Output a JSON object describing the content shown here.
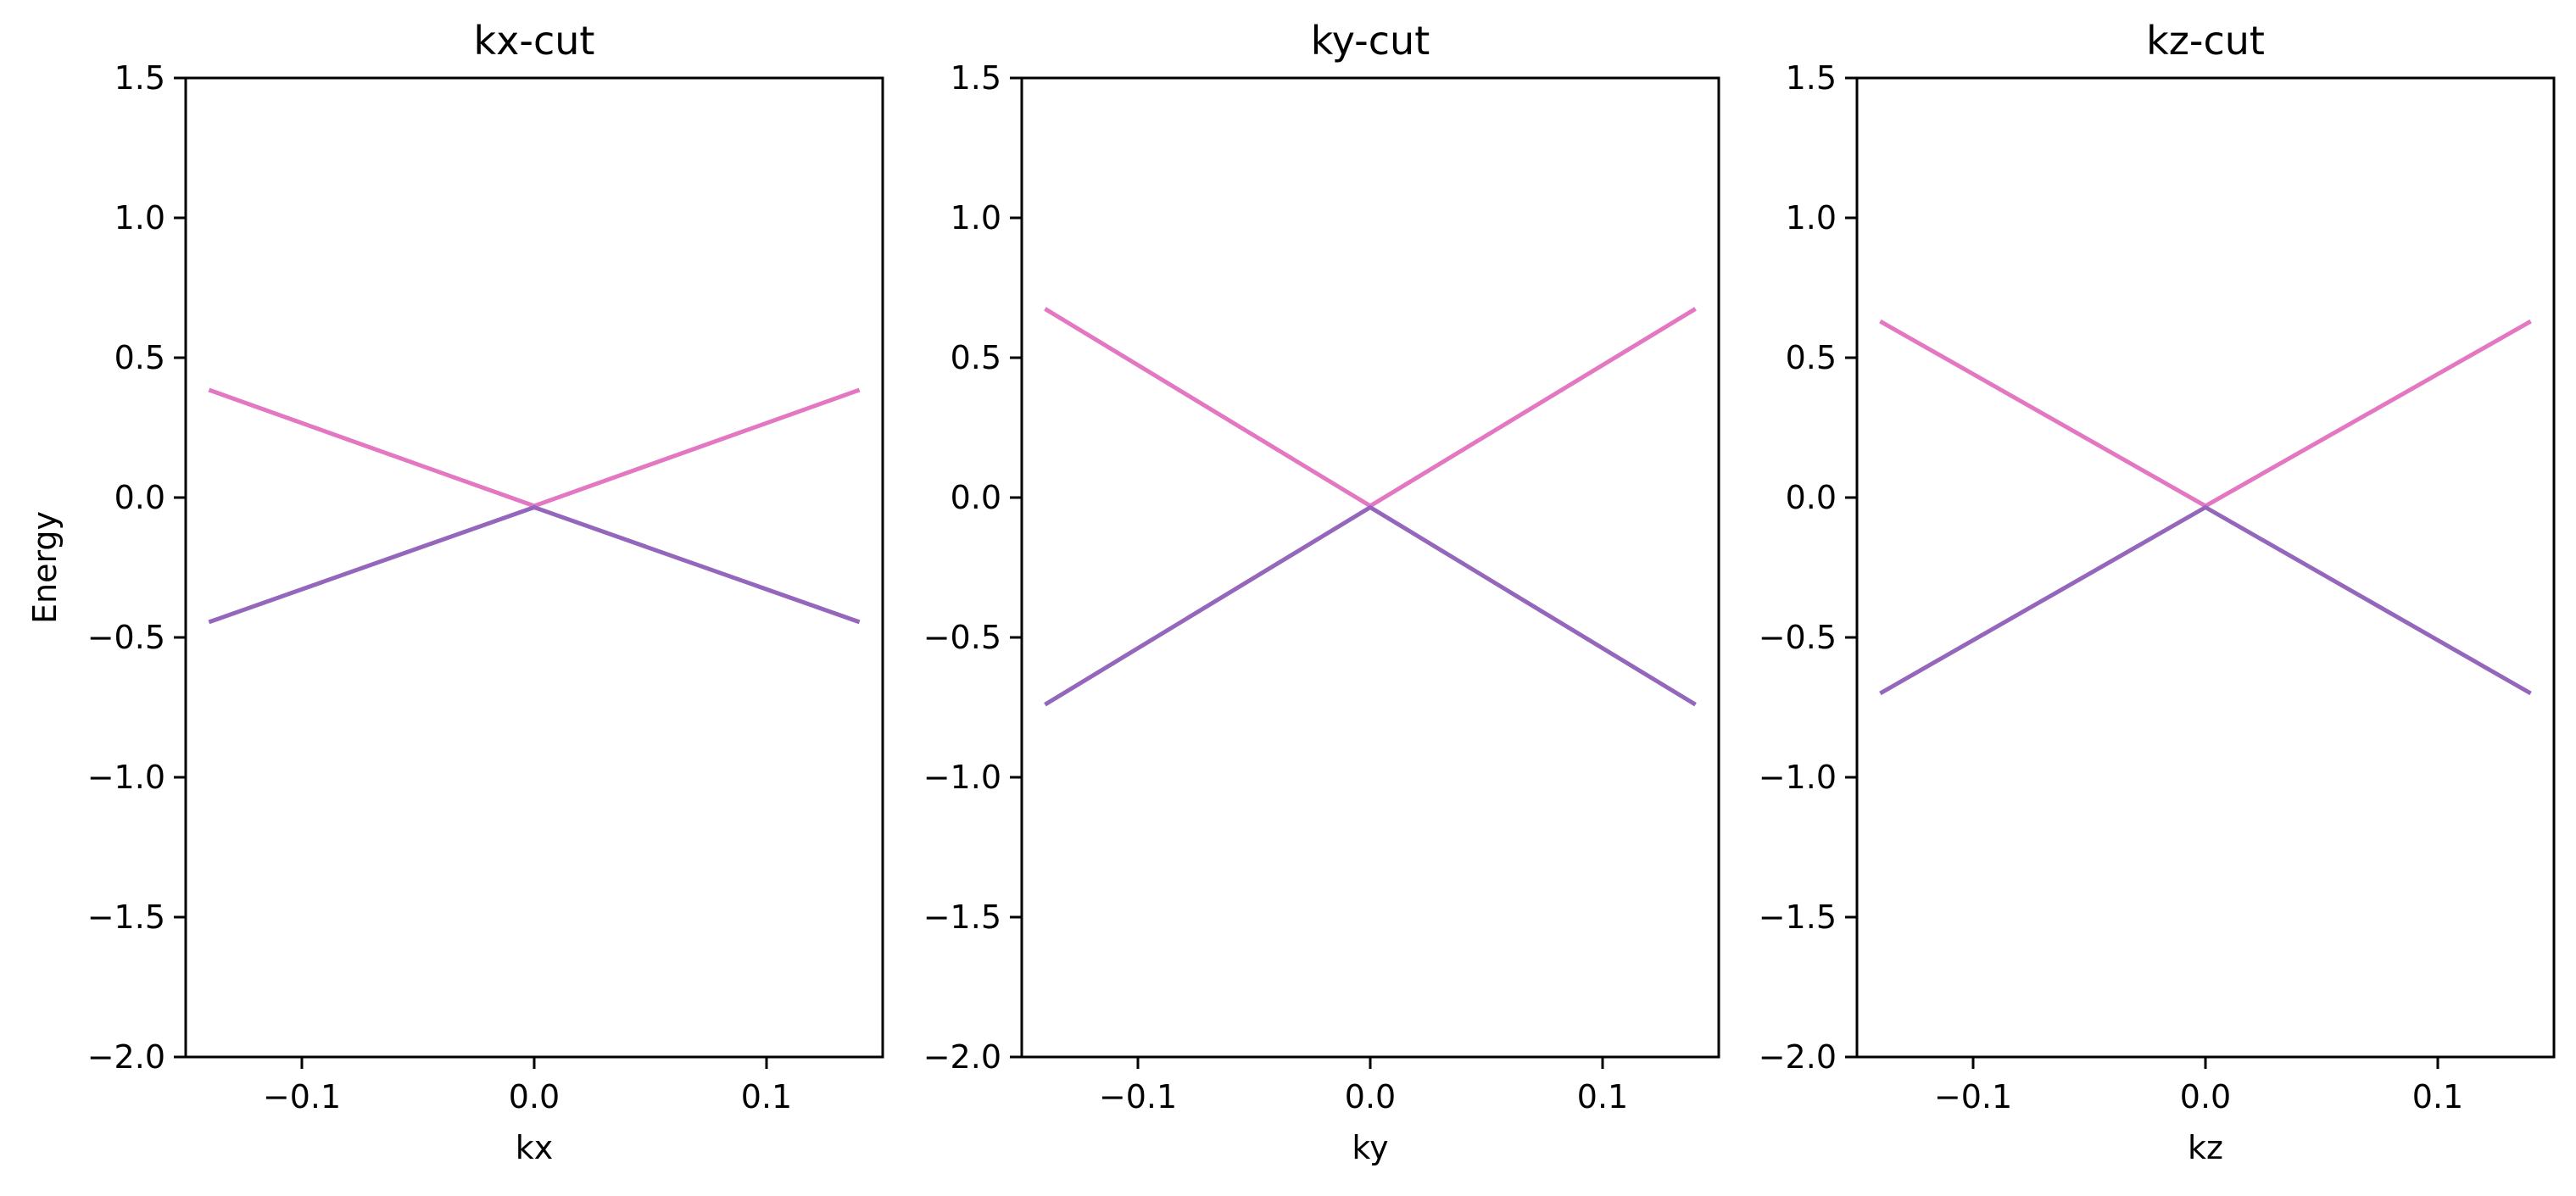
{
  "figure": {
    "ylabel": "Energy"
  },
  "colors": {
    "upper_band": "#e377c2",
    "lower_band": "#9467bd",
    "axes": "#000000",
    "background": "#ffffff"
  },
  "chart_data": [
    {
      "type": "line",
      "title": "kx-cut",
      "xlabel": "kx",
      "ylabel": "Energy",
      "xlim": [
        -0.15,
        0.15
      ],
      "ylim": [
        -2.0,
        1.5
      ],
      "xticks": [
        -0.1,
        0.0,
        0.1
      ],
      "xtick_labels": [
        "−0.1",
        "0.0",
        "0.1"
      ],
      "yticks": [
        -2.0,
        -1.5,
        -1.0,
        -0.5,
        0.0,
        0.5,
        1.0,
        1.5
      ],
      "ytick_labels": [
        "−2.0",
        "−1.5",
        "−1.0",
        "−0.5",
        "0.0",
        "0.5",
        "1.0",
        "1.5"
      ],
      "grid": false,
      "series": [
        {
          "x": [
            -0.14,
            0.0,
            0.14
          ],
          "y": [
            0.385,
            -0.03,
            0.385
          ]
        },
        {
          "x": [
            -0.14,
            0.0,
            0.14
          ],
          "y": [
            -0.445,
            -0.035,
            -0.445
          ]
        }
      ]
    },
    {
      "type": "line",
      "title": "ky-cut",
      "xlabel": "ky",
      "ylabel": "",
      "xlim": [
        -0.15,
        0.15
      ],
      "ylim": [
        -2.0,
        1.5
      ],
      "xticks": [
        -0.1,
        0.0,
        0.1
      ],
      "xtick_labels": [
        "−0.1",
        "0.0",
        "0.1"
      ],
      "yticks": [
        -2.0,
        -1.5,
        -1.0,
        -0.5,
        0.0,
        0.5,
        1.0,
        1.5
      ],
      "ytick_labels": [
        "−2.0",
        "−1.5",
        "−1.0",
        "−0.5",
        "0.0",
        "0.5",
        "1.0",
        "1.5"
      ],
      "grid": false,
      "series": [
        {
          "x": [
            -0.14,
            0.0,
            0.14
          ],
          "y": [
            0.675,
            -0.03,
            0.675
          ]
        },
        {
          "x": [
            -0.14,
            0.0,
            0.14
          ],
          "y": [
            -0.74,
            -0.035,
            -0.74
          ]
        }
      ]
    },
    {
      "type": "line",
      "title": "kz-cut",
      "xlabel": "kz",
      "ylabel": "",
      "xlim": [
        -0.15,
        0.15
      ],
      "ylim": [
        -2.0,
        1.5
      ],
      "xticks": [
        -0.1,
        0.0,
        0.1
      ],
      "xtick_labels": [
        "−0.1",
        "0.0",
        "0.1"
      ],
      "yticks": [
        -2.0,
        -1.5,
        -1.0,
        -0.5,
        0.0,
        0.5,
        1.0,
        1.5
      ],
      "ytick_labels": [
        "−2.0",
        "−1.5",
        "−1.0",
        "−0.5",
        "0.0",
        "0.5",
        "1.0",
        "1.5"
      ],
      "grid": false,
      "series": [
        {
          "x": [
            -0.14,
            0.0,
            0.14
          ],
          "y": [
            0.63,
            -0.03,
            0.63
          ]
        },
        {
          "x": [
            -0.14,
            0.0,
            0.14
          ],
          "y": [
            -0.7,
            -0.035,
            -0.7
          ]
        }
      ]
    }
  ]
}
